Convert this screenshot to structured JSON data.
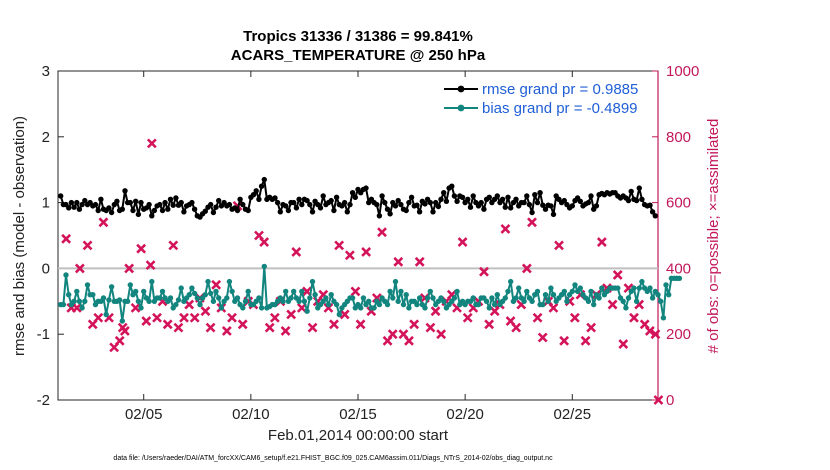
{
  "chart_data": {
    "type": "line",
    "title": [
      "Tropics 31336 / 31386 = 99.841%",
      "ACARS_TEMPERATURE @ 250 hPa"
    ],
    "xlabel": "Feb.01,2014 00:00:00 start",
    "ylabel": "rmse and bias (model - observation)",
    "ylabel_right": "# of obs: o=possible; ×=assimilated",
    "xlim": [
      1.0,
      29.0
    ],
    "ylim": [
      -2,
      3
    ],
    "ylim_right": [
      0,
      1000
    ],
    "x_ticks": [
      5,
      10,
      15,
      20,
      25
    ],
    "x_tick_labels": [
      "02/05",
      "02/10",
      "02/15",
      "02/20",
      "02/25"
    ],
    "y_ticks": [
      -2,
      -1,
      0,
      1,
      2,
      3
    ],
    "y_tick_labels": [
      "-2",
      "-1",
      "0",
      "1",
      "2",
      "3"
    ],
    "y_right_ticks": [
      0,
      200,
      400,
      600,
      800,
      1000
    ],
    "y_right_tick_labels": [
      "0",
      "200",
      "400",
      "600",
      "800",
      "1000"
    ],
    "zero_line": 0,
    "colors": {
      "rmse": "#000000",
      "bias": "#12857f",
      "obs": "#d4145a",
      "legend_text": "#1f5fd6",
      "right_axis": "#c2185b"
    },
    "series": [
      {
        "name": "rmse grand pr = 0.9885",
        "axis": "left",
        "x_start": 1.125,
        "x_step": 0.125,
        "values": [
          1.1,
          0.97,
          0.97,
          0.92,
          1.0,
          0.93,
          1.0,
          0.9,
          0.97,
          1.03,
          0.97,
          1.0,
          0.95,
          0.97,
          0.88,
          1.05,
          0.9,
          0.88,
          0.92,
          0.85,
          0.97,
          1.02,
          0.88,
          0.9,
          1.18,
          1.0,
          1.0,
          0.88,
          1.02,
          0.82,
          1.0,
          0.9,
          0.92,
          0.97,
          0.8,
          0.88,
          0.95,
          0.97,
          0.88,
          1.0,
          0.9,
          1.05,
          0.96,
          1.07,
          0.96,
          1.0,
          0.86,
          0.95,
          0.97,
          1.0,
          0.9,
          0.8,
          0.78,
          0.83,
          0.87,
          0.93,
          0.97,
          0.85,
          0.93,
          1.03,
          0.95,
          1.0,
          0.95,
          0.97,
          0.9,
          0.92,
          0.88,
          1.05,
          0.97,
          0.9,
          0.88,
          1.08,
          1.12,
          1.18,
          1.05,
          1.25,
          1.35,
          1.05,
          1.08,
          1.05,
          1.07,
          1.0,
          0.86,
          0.97,
          0.95,
          0.88,
          1.0,
          1.0,
          0.92,
          1.05,
          0.97,
          1.05,
          1.03,
          0.97,
          0.86,
          1.02,
          0.97,
          0.92,
          1.1,
          0.97,
          1.0,
          1.03,
          0.88,
          1.08,
          0.97,
          0.95,
          1.0,
          0.86,
          0.97,
          1.15,
          1.08,
          1.2,
          1.15,
          1.2,
          1.22,
          1.0,
          1.05,
          1.0,
          0.97,
          0.8,
          1.1,
          1.0,
          0.9,
          0.83,
          1.0,
          0.95,
          1.03,
          0.97,
          0.9,
          0.88,
          1.0,
          1.08,
          0.95,
          0.96,
          0.86,
          1.02,
          0.98,
          1.05,
          1.0,
          0.86,
          1.0,
          0.94,
          1.05,
          1.15,
          1.02,
          1.22,
          1.25,
          1.1,
          1.02,
          1.1,
          1.08,
          1.0,
          1.05,
          0.93,
          1.1,
          1.0,
          0.95,
          1.0,
          0.9,
          1.05,
          1.08,
          1.0,
          1.05,
          1.1,
          1.0,
          1.05,
          0.93,
          1.08,
          0.92,
          1.0,
          1.05,
          0.95,
          1.0,
          1.0,
          1.1,
          0.97,
          0.85,
          1.12,
          1.0,
          1.15,
          0.96,
          0.9,
          0.96,
          0.95,
          0.82,
          1.1,
          1.05,
          1.0,
          1.03,
          0.97,
          0.92,
          0.95,
          1.03,
          1.07,
          1.02,
          0.95,
          0.98,
          1.0,
          1.1,
          0.9,
          0.95,
          1.12,
          1.14,
          1.12,
          1.15,
          1.13,
          1.15,
          1.15,
          1.1,
          1.07,
          1.1,
          1.07,
          1.03,
          1.17,
          1.05,
          1.03,
          1.22,
          1.05,
          0.97,
          0.95,
          0.96,
          0.86,
          0.8
        ]
      },
      {
        "name": "bias grand pr = -0.4899",
        "axis": "left",
        "x_start": 1.125,
        "x_step": 0.125,
        "values": [
          -0.55,
          -0.55,
          -0.1,
          -0.4,
          -0.55,
          -0.5,
          -0.35,
          -0.5,
          -0.6,
          -0.5,
          -0.25,
          -0.4,
          -0.4,
          -0.55,
          -0.5,
          -0.5,
          -0.45,
          -0.7,
          -0.48,
          -0.28,
          -0.5,
          -0.5,
          -0.48,
          -0.8,
          -0.5,
          -0.5,
          -0.25,
          -0.4,
          -0.35,
          -0.5,
          -0.6,
          -0.35,
          -0.45,
          -0.5,
          -0.2,
          -0.5,
          -0.45,
          -0.45,
          -0.35,
          -0.45,
          -0.5,
          -0.45,
          -0.6,
          -0.55,
          -0.48,
          -0.3,
          -0.5,
          -0.45,
          -0.4,
          -0.3,
          -0.38,
          -0.45,
          -0.55,
          -0.45,
          -0.4,
          -0.2,
          -0.38,
          -0.5,
          -0.35,
          -0.45,
          -0.6,
          -0.5,
          -0.45,
          -0.2,
          -0.35,
          -0.5,
          -0.45,
          -0.55,
          -0.6,
          -0.5,
          -0.35,
          -0.55,
          -0.55,
          -0.5,
          -0.45,
          -0.6,
          0.03,
          -0.6,
          -0.58,
          -0.55,
          -0.55,
          -0.5,
          -0.45,
          -0.5,
          -0.35,
          -0.5,
          -0.45,
          -0.35,
          -0.45,
          -0.5,
          -0.35,
          -0.5,
          -0.65,
          -0.45,
          -0.2,
          -0.4,
          -0.6,
          -0.55,
          -0.5,
          -0.45,
          -0.55,
          -0.4,
          -0.5,
          -0.55,
          -0.7,
          -0.6,
          -0.55,
          -0.5,
          -0.45,
          -0.45,
          -0.6,
          -0.55,
          -0.6,
          -0.45,
          -0.55,
          -0.5,
          -0.6,
          -0.6,
          -0.5,
          -0.55,
          -0.45,
          -0.5,
          -0.55,
          -0.35,
          -0.45,
          -0.2,
          -0.5,
          -0.35,
          -0.55,
          -0.4,
          -0.6,
          -0.5,
          -0.5,
          -0.55,
          -0.45,
          -0.55,
          -0.6,
          -0.45,
          -0.35,
          -0.45,
          -0.55,
          -0.5,
          -0.45,
          -0.5,
          -0.6,
          -0.55,
          -0.5,
          -0.45,
          -0.35,
          -0.55,
          -0.5,
          -0.55,
          -0.5,
          -0.5,
          -0.45,
          -0.55,
          -0.55,
          -0.45,
          -0.45,
          -0.5,
          -0.6,
          -0.45,
          -0.55,
          -0.4,
          -0.55,
          -0.5,
          -0.45,
          -0.35,
          -0.2,
          -0.5,
          -0.45,
          -0.3,
          -0.45,
          -0.5,
          -0.35,
          -0.45,
          -0.5,
          -0.4,
          -0.35,
          -0.55,
          -0.55,
          -0.4,
          -0.5,
          -0.3,
          -0.4,
          -0.5,
          -0.45,
          -0.4,
          -0.35,
          -0.5,
          -0.4,
          -0.35,
          -0.25,
          -0.35,
          -0.3,
          -0.4,
          -0.45,
          -0.5,
          -0.35,
          -0.55,
          -0.4,
          -0.45,
          -0.3,
          -0.4,
          -0.35,
          -0.3,
          -0.3,
          -0.3,
          -0.3,
          -0.45,
          -0.5,
          -0.6,
          -0.45,
          -0.35,
          -0.3,
          -0.5,
          -0.3,
          -0.2,
          -0.3,
          -0.35,
          -0.3,
          -0.45,
          -0.35,
          -0.4,
          -0.5,
          -0.75,
          -0.25,
          -0.4,
          -0.15,
          -0.15,
          -0.15,
          -0.15
        ]
      },
      {
        "name": "# of obs assimilated",
        "axis": "right",
        "points": [
          [
            1.38,
            490
          ],
          [
            1.62,
            280
          ],
          [
            1.88,
            280
          ],
          [
            2.02,
            400
          ],
          [
            2.38,
            470
          ],
          [
            2.62,
            230
          ],
          [
            2.88,
            250
          ],
          [
            3.12,
            540
          ],
          [
            3.38,
            250
          ],
          [
            3.62,
            160
          ],
          [
            3.88,
            180
          ],
          [
            4.02,
            220
          ],
          [
            4.12,
            210
          ],
          [
            4.32,
            400
          ],
          [
            4.62,
            280
          ],
          [
            4.88,
            460
          ],
          [
            5.12,
            240
          ],
          [
            5.32,
            410
          ],
          [
            5.38,
            780
          ],
          [
            5.62,
            250
          ],
          [
            5.88,
            300
          ],
          [
            6.12,
            230
          ],
          [
            6.38,
            470
          ],
          [
            6.62,
            220
          ],
          [
            6.88,
            250
          ],
          [
            7.12,
            290
          ],
          [
            7.38,
            250
          ],
          [
            7.62,
            310
          ],
          [
            7.88,
            270
          ],
          [
            8.12,
            220
          ],
          [
            8.38,
            350
          ],
          [
            8.62,
            280
          ],
          [
            8.88,
            210
          ],
          [
            9.12,
            250
          ],
          [
            9.38,
            590
          ],
          [
            9.62,
            230
          ],
          [
            9.88,
            300
          ],
          [
            10.12,
            290
          ],
          [
            10.38,
            500
          ],
          [
            10.62,
            480
          ],
          [
            10.88,
            220
          ],
          [
            11.12,
            250
          ],
          [
            11.38,
            300
          ],
          [
            11.62,
            210
          ],
          [
            11.88,
            260
          ],
          [
            12.12,
            450
          ],
          [
            12.38,
            280
          ],
          [
            12.62,
            330
          ],
          [
            12.88,
            220
          ],
          [
            13.12,
            300
          ],
          [
            13.38,
            320
          ],
          [
            13.62,
            280
          ],
          [
            13.88,
            230
          ],
          [
            14.12,
            470
          ],
          [
            14.38,
            260
          ],
          [
            14.62,
            440
          ],
          [
            14.88,
            330
          ],
          [
            15.12,
            230
          ],
          [
            15.38,
            450
          ],
          [
            15.62,
            270
          ],
          [
            15.88,
            310
          ],
          [
            16.12,
            510
          ],
          [
            16.38,
            180
          ],
          [
            16.62,
            200
          ],
          [
            16.88,
            420
          ],
          [
            17.12,
            200
          ],
          [
            17.38,
            180
          ],
          [
            17.62,
            230
          ],
          [
            17.88,
            420
          ],
          [
            18.12,
            310
          ],
          [
            18.38,
            220
          ],
          [
            18.62,
            270
          ],
          [
            18.88,
            200
          ],
          [
            19.12,
            300
          ],
          [
            19.38,
            320
          ],
          [
            19.62,
            280
          ],
          [
            19.88,
            480
          ],
          [
            20.12,
            250
          ],
          [
            20.38,
            280
          ],
          [
            20.62,
            300
          ],
          [
            20.88,
            390
          ],
          [
            21.12,
            230
          ],
          [
            21.38,
            270
          ],
          [
            21.62,
            290
          ],
          [
            21.88,
            520
          ],
          [
            22.12,
            240
          ],
          [
            22.38,
            220
          ],
          [
            22.62,
            290
          ],
          [
            22.88,
            400
          ],
          [
            23.12,
            540
          ],
          [
            23.38,
            250
          ],
          [
            23.62,
            190
          ],
          [
            23.88,
            300
          ],
          [
            24.12,
            280
          ],
          [
            24.38,
            470
          ],
          [
            24.62,
            180
          ],
          [
            24.88,
            300
          ],
          [
            25.12,
            250
          ],
          [
            25.38,
            320
          ],
          [
            25.62,
            180
          ],
          [
            25.88,
            220
          ],
          [
            26.12,
            320
          ],
          [
            26.38,
            480
          ],
          [
            26.62,
            340
          ],
          [
            26.88,
            290
          ],
          [
            27.12,
            380
          ],
          [
            27.38,
            170
          ],
          [
            27.62,
            340
          ],
          [
            27.88,
            250
          ],
          [
            28.12,
            290
          ],
          [
            28.38,
            230
          ],
          [
            28.62,
            210
          ],
          [
            28.88,
            200
          ],
          [
            29.02,
            0
          ]
        ]
      }
    ],
    "legend": [
      {
        "label": "rmse grand pr = 0.9885",
        "series": "rmse"
      },
      {
        "label": "bias grand pr = -0.4899",
        "series": "bias"
      }
    ],
    "legend_position": "top-right",
    "footnote": "data file: /Users/raeder/DAI/ATM_forcXX/CAM6_setup/f.e21.FHIST_BGC.f09_025.CAM6assim.011/Diags_NTrS_2014-02/obs_diag_output.nc"
  }
}
